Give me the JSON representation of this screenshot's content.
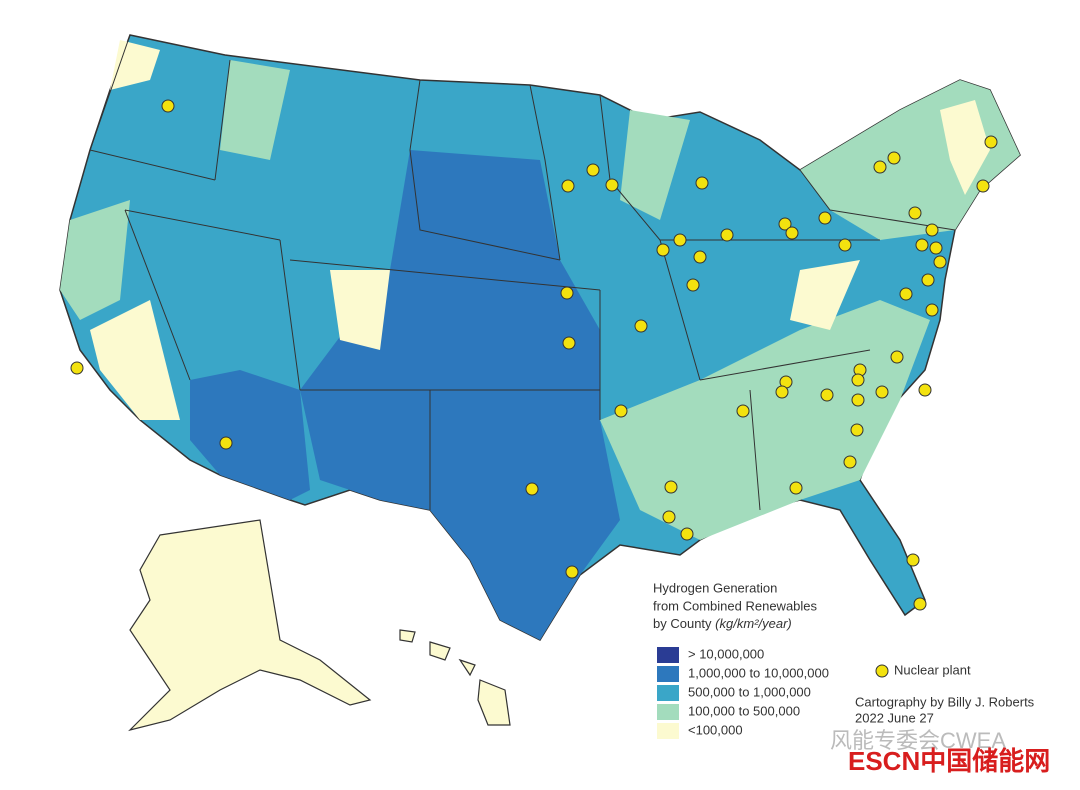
{
  "legend": {
    "title": [
      "Hydrogen Generation",
      "from Combined Renewables",
      "by County"
    ],
    "unit": "(kg/km²/year)",
    "items": [
      {
        "label": "> 10,000,000",
        "color": "#2a3c94"
      },
      {
        "label": "1,000,000 to 10,000,000",
        "color": "#2d78bd"
      },
      {
        "label": "500,000 to 1,000,000",
        "color": "#3aa6c8"
      },
      {
        "label": "100,000 to 500,000",
        "color": "#a3dcbd"
      },
      {
        "label": "<100,000",
        "color": "#fcfad0"
      }
    ],
    "marker": {
      "label": "Nuclear plant",
      "color": "#f3e20f"
    }
  },
  "credits": [
    "Cartography by Billy J. Roberts",
    "2022 June 27"
  ],
  "watermark": [
    "风能专委会CWEA",
    "ESCN中国储能网"
  ]
}
